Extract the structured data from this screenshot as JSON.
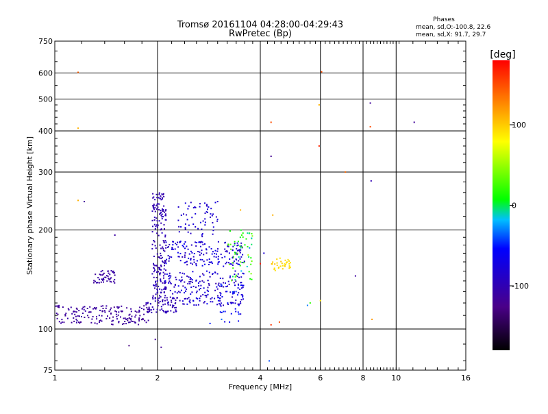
{
  "chart_data": {
    "type": "scatter",
    "title": "Tromsø 20161104 04:28:00-04:29:43",
    "subtitle": "RwPretec (Bp)",
    "xlabel": "Frequency [MHz]",
    "ylabel": "Stationary phase Virtual Height [km]",
    "x_scale": "log",
    "y_scale": "log",
    "xlim": [
      1,
      16
    ],
    "ylim": [
      75,
      750
    ],
    "x_ticks": [
      1,
      2,
      4,
      6,
      8,
      10,
      16
    ],
    "x_tick_labels": [
      "1",
      "2",
      "4",
      "6",
      "8",
      "10",
      "16"
    ],
    "y_ticks": [
      75,
      100,
      200,
      300,
      400,
      500,
      600,
      750
    ],
    "y_tick_labels": [
      "75",
      "100",
      "200",
      "300",
      "400",
      "500",
      "600",
      "750"
    ],
    "grid": true,
    "legend": {
      "title": "Phases",
      "lines": [
        "mean, sd,O:-100.8, 22.6",
        "mean, sd,X:  91.7, 29.7"
      ],
      "placement": "top-right"
    },
    "colorbar": {
      "label": "[deg]",
      "range": [
        -180,
        180
      ],
      "ticks": [
        100,
        0,
        -100
      ],
      "tick_labels": [
        "100",
        "0",
        "-100"
      ],
      "colors": [
        "#000000",
        "#4a0088",
        "#0000ff",
        "#00bfff",
        "#00ff00",
        "#ffff00",
        "#ff8000",
        "#ff0000"
      ]
    },
    "clusters": [
      {
        "name": "low-trace-1",
        "x_range": [
          1.0,
          1.9
        ],
        "y_range": [
          103,
          118
        ],
        "n": 180,
        "phase": -112,
        "phase_sd": 12
      },
      {
        "name": "low-trace-2",
        "x_range": [
          1.85,
          2.3
        ],
        "y_range": [
          112,
          125
        ],
        "n": 70,
        "phase": -100,
        "phase_sd": 15
      },
      {
        "name": "left-blob",
        "x_range": [
          1.3,
          1.5
        ],
        "y_range": [
          138,
          152
        ],
        "n": 50,
        "phase": -110,
        "phase_sd": 10
      },
      {
        "name": "vertical-column",
        "x_range": [
          1.93,
          2.12
        ],
        "y_range": [
          125,
          260
        ],
        "n": 190,
        "phase": -100,
        "phase_sd": 14
      },
      {
        "name": "mid-band-upper",
        "x_range": [
          2.1,
          3.6
        ],
        "y_range": [
          155,
          185
        ],
        "n": 170,
        "phase": -80,
        "phase_sd": 30
      },
      {
        "name": "mid-band-lower",
        "x_range": [
          2.1,
          3.6
        ],
        "y_range": [
          118,
          150
        ],
        "n": 200,
        "phase": -85,
        "phase_sd": 30
      },
      {
        "name": "upper-arc",
        "x_range": [
          2.3,
          3.0
        ],
        "y_range": [
          190,
          245
        ],
        "n": 60,
        "phase": -80,
        "phase_sd": 25
      },
      {
        "name": "right-edge",
        "x_range": [
          3.2,
          3.8
        ],
        "y_range": [
          140,
          200
        ],
        "n": 55,
        "phase": 20,
        "phase_sd": 70
      },
      {
        "name": "yellow-blob",
        "x_range": [
          4.3,
          4.9
        ],
        "y_range": [
          150,
          165
        ],
        "n": 35,
        "phase": 95,
        "phase_sd": 15
      },
      {
        "name": "mid-spread",
        "x_range": [
          3.0,
          3.6
        ],
        "y_range": [
          105,
          140
        ],
        "n": 40,
        "phase": -60,
        "phase_sd": 40
      }
    ],
    "points": [
      {
        "x": 1.17,
        "y": 603,
        "phase": 140
      },
      {
        "x": 1.17,
        "y": 408,
        "phase": 110
      },
      {
        "x": 1.17,
        "y": 246,
        "phase": 110
      },
      {
        "x": 1.22,
        "y": 244,
        "phase": -115
      },
      {
        "x": 1.5,
        "y": 193,
        "phase": -110
      },
      {
        "x": 1.65,
        "y": 89,
        "phase": -130
      },
      {
        "x": 1.97,
        "y": 93,
        "phase": -115
      },
      {
        "x": 2.05,
        "y": 88,
        "phase": -115
      },
      {
        "x": 3.0,
        "y": 244,
        "phase": -90
      },
      {
        "x": 3.5,
        "y": 230,
        "phase": 110
      },
      {
        "x": 4.3,
        "y": 425,
        "phase": 150
      },
      {
        "x": 4.3,
        "y": 335,
        "phase": -120
      },
      {
        "x": 4.25,
        "y": 80,
        "phase": -40
      },
      {
        "x": 4.35,
        "y": 222,
        "phase": 110
      },
      {
        "x": 5.95,
        "y": 480,
        "phase": 110
      },
      {
        "x": 5.95,
        "y": 360,
        "phase": 165
      },
      {
        "x": 6.05,
        "y": 605,
        "phase": 150
      },
      {
        "x": 7.1,
        "y": 300,
        "phase": 140
      },
      {
        "x": 8.4,
        "y": 486,
        "phase": -115
      },
      {
        "x": 8.4,
        "y": 412,
        "phase": 150
      },
      {
        "x": 8.45,
        "y": 282,
        "phase": -100
      },
      {
        "x": 8.5,
        "y": 107,
        "phase": 120
      },
      {
        "x": 11.3,
        "y": 425,
        "phase": -115
      },
      {
        "x": 7.6,
        "y": 145,
        "phase": -110
      },
      {
        "x": 6.0,
        "y": 122,
        "phase": 90
      },
      {
        "x": 5.5,
        "y": 118,
        "phase": -30
      },
      {
        "x": 5.6,
        "y": 120,
        "phase": 20
      },
      {
        "x": 4.3,
        "y": 103,
        "phase": 160
      },
      {
        "x": 4.55,
        "y": 105,
        "phase": 150
      },
      {
        "x": 3.25,
        "y": 105,
        "phase": -60
      },
      {
        "x": 2.85,
        "y": 104,
        "phase": -50
      },
      {
        "x": 4.1,
        "y": 170,
        "phase": -80
      },
      {
        "x": 4.0,
        "y": 158,
        "phase": 170
      }
    ]
  }
}
